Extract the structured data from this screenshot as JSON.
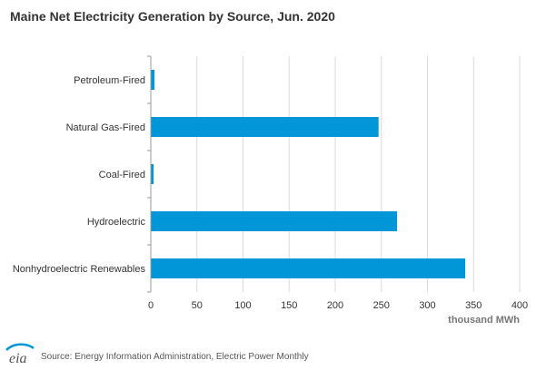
{
  "chart_data": {
    "type": "bar",
    "orientation": "horizontal",
    "title": "Maine Net Electricity Generation by Source, Jun. 2020",
    "categories": [
      "Petroleum-Fired",
      "Natural Gas-Fired",
      "Coal-Fired",
      "Hydroelectric",
      "Nonhydroelectric Renewables"
    ],
    "values": [
      4,
      247,
      3,
      267,
      341
    ],
    "xlabel": "thousand MWh",
    "ylabel": "",
    "xlim": [
      0,
      400
    ],
    "xticks": [
      0,
      50,
      100,
      150,
      200,
      250,
      300,
      350,
      400
    ],
    "grid": "vertical",
    "bar_color": "#0096d7",
    "legend": "none"
  },
  "footer": {
    "logo_text": "eia",
    "source": "Source: Energy Information Administration, Electric Power Monthly"
  },
  "colors": {
    "bar": "#0096d7",
    "grid": "#d9d9d9",
    "axis": "#999999",
    "text": "#333333",
    "logo_blue": "#0096d7"
  }
}
